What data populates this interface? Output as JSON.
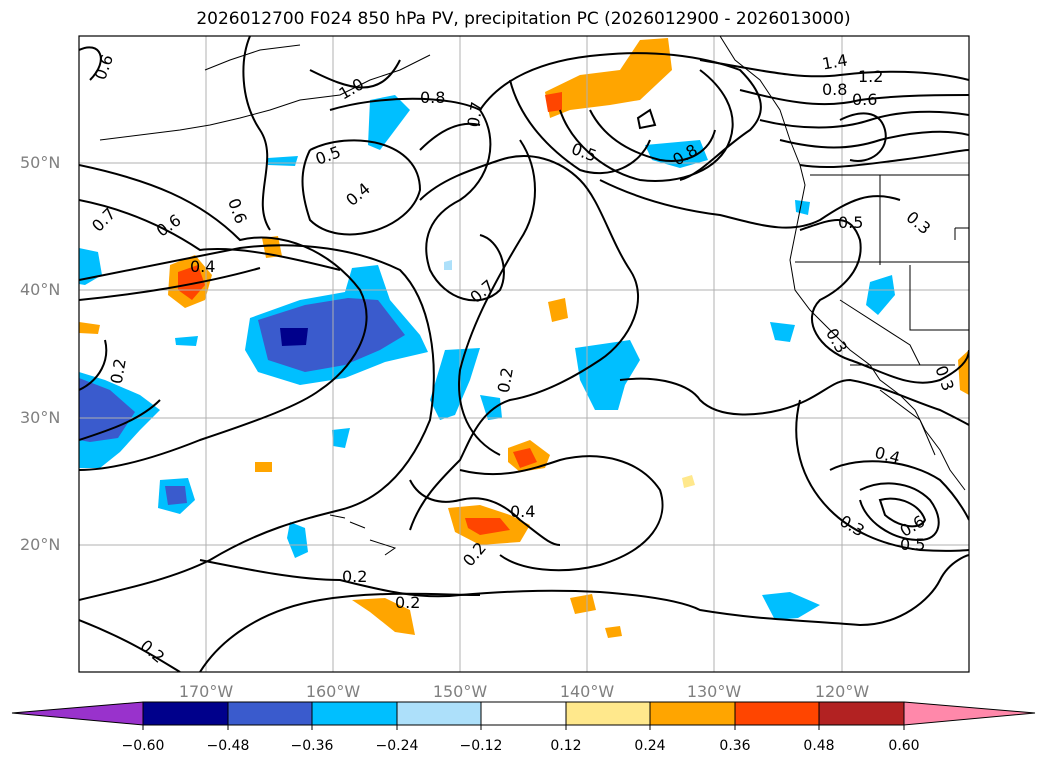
{
  "title": "2026012700 F024 850 hPa PV, precipitation PC (2026012900 - 2026013000)",
  "map": {
    "lat_labels": [
      "50°N",
      "40°N",
      "30°N",
      "20°N"
    ],
    "lon_labels": [
      "170°W",
      "160°W",
      "150°W",
      "140°W",
      "130°W",
      "120°W"
    ],
    "contour_labels": [
      "0.6",
      "1.0",
      "0.8",
      "0.7",
      "0.5",
      "0.4",
      "0.6",
      "0.7",
      "0.6",
      "0.4",
      "0.2",
      "0.7",
      "0.2",
      "0.4",
      "0.2",
      "0.2",
      "0.2",
      "0.5",
      "0.8",
      "1.4",
      "1.2",
      "0.8",
      "0.6",
      "0.5",
      "0.3",
      "0.3",
      "0.3",
      "0.4",
      "0.6",
      "0.5",
      "0.3",
      "0.2"
    ]
  },
  "colorbar": {
    "ticks": [
      "−0.60",
      "−0.48",
      "−0.36",
      "−0.24",
      "−0.12",
      "0.12",
      "0.24",
      "0.36",
      "0.48",
      "0.60"
    ],
    "colors": [
      "#9932CC",
      "#00008B",
      "#3A5BCD",
      "#00BFFF",
      "#ADE0FA",
      "#FFFFFF",
      "#FFE88C",
      "#FFA500",
      "#FF4500",
      "#B22222",
      "#FF88AA"
    ]
  }
}
